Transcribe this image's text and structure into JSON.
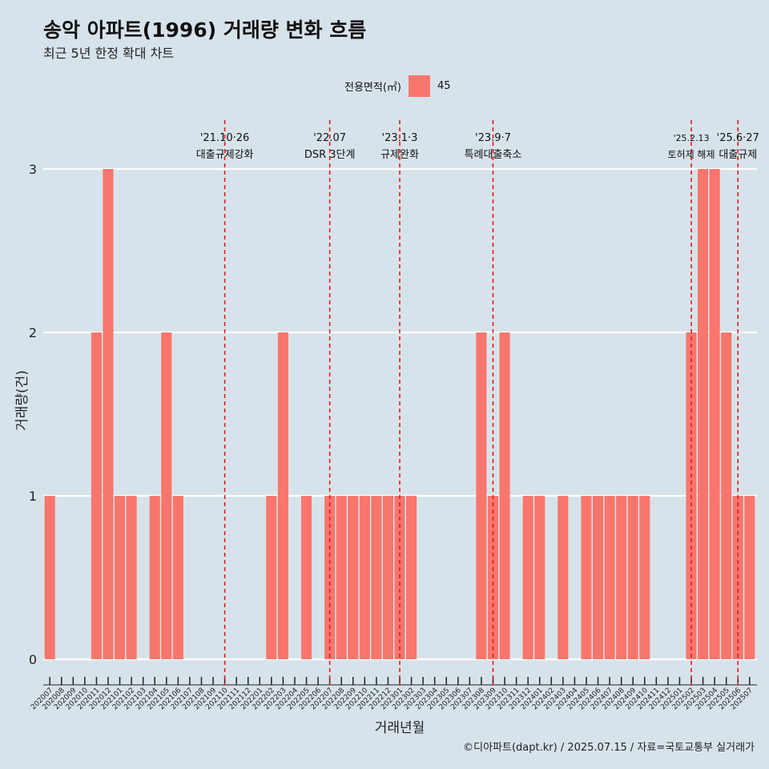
{
  "title": "송악 아파트(1996) 거래량 변화 흐름",
  "subtitle": "최근 5년 한정 확대 차트",
  "legend": {
    "title": "전용면적(㎡)",
    "item": "45",
    "color": "#f8766d"
  },
  "caption": "©디아파트(dapt.kr) / 2025.07.15 / 자료=국토교통부 실거래가",
  "chart_data": {
    "type": "bar",
    "title": "송악 아파트(1996) 거래량 변화 흐름",
    "subtitle": "최근 5년 한정 확대 차트",
    "xlabel": "거래년월",
    "ylabel": "거래량(건)",
    "ylim": [
      0,
      3
    ],
    "yticks": [
      0,
      1,
      2,
      3
    ],
    "grid": "horizontal",
    "legend_position": "top",
    "bar_color": "#f8766d",
    "categories": [
      "202007",
      "202008",
      "202009",
      "202010",
      "202011",
      "202012",
      "202101",
      "202102",
      "202103",
      "202104",
      "202105",
      "202106",
      "202107",
      "202108",
      "202109",
      "202110",
      "202111",
      "202112",
      "202201",
      "202202",
      "202203",
      "202204",
      "202205",
      "202206",
      "202207",
      "202208",
      "202209",
      "202210",
      "202211",
      "202212",
      "202301",
      "202302",
      "202303",
      "202304",
      "202305",
      "202306",
      "202307",
      "202308",
      "202309",
      "202310",
      "202311",
      "202312",
      "202401",
      "202402",
      "202403",
      "202404",
      "202405",
      "202406",
      "202407",
      "202408",
      "202409",
      "202410",
      "202411",
      "202412",
      "202501",
      "202502",
      "202503",
      "202504",
      "202505",
      "202506",
      "202507"
    ],
    "series": [
      {
        "name": "45",
        "values": [
          1,
          0,
          0,
          0,
          2,
          3,
          1,
          1,
          0,
          1,
          2,
          1,
          0,
          0,
          0,
          0,
          0,
          0,
          0,
          1,
          2,
          0,
          1,
          0,
          1,
          1,
          1,
          1,
          1,
          1,
          1,
          1,
          0,
          0,
          0,
          0,
          0,
          2,
          1,
          2,
          0,
          1,
          1,
          0,
          1,
          0,
          1,
          1,
          1,
          1,
          1,
          1,
          0,
          0,
          0,
          2,
          3,
          3,
          2,
          1,
          1
        ]
      }
    ],
    "annotations": [
      {
        "at": "202110",
        "date": "'21.10·26",
        "label": "대출규제강화"
      },
      {
        "at": "202207",
        "date": "'22.07",
        "label": "DSR 3단계"
      },
      {
        "at": "202301",
        "date": "'23.1·3",
        "label": "규제완화"
      },
      {
        "at": "202309",
        "date": "'23.9·7",
        "label": "특례대출축소"
      },
      {
        "at": "202502",
        "date": "'25.2.13",
        "label": "토허제 해제"
      },
      {
        "at": "202506",
        "date": "'25.6·27",
        "label": "대출규제"
      }
    ],
    "annotation_line_color": "#e41a1c"
  }
}
